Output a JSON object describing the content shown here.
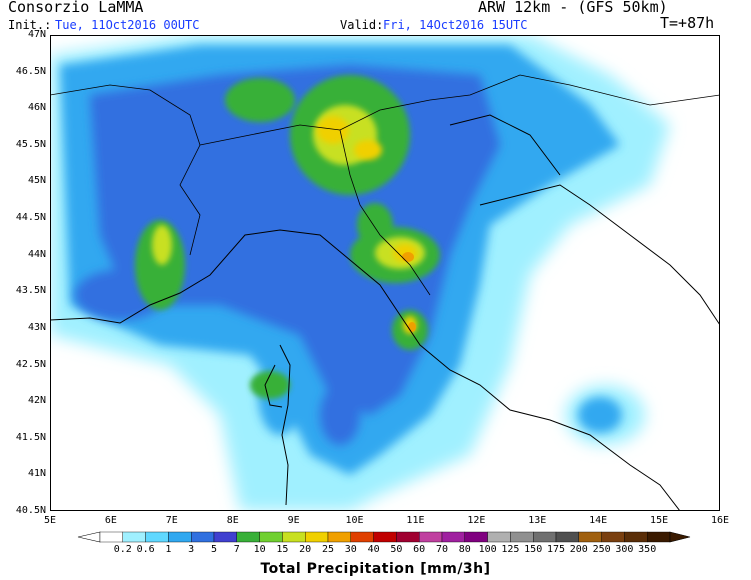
{
  "header": {
    "title": "Consorzio LaMMA",
    "model": "ARW 12km - (GFS 50km)",
    "init_label": "Init.:",
    "init_value": "Tue, 11Oct2016 00UTC",
    "valid_label": "Valid:",
    "valid_value": "Fri, 14Oct2016 15UTC",
    "forecast_step": "T=+87h"
  },
  "map": {
    "lat_labels": [
      "47N",
      "46.5N",
      "46N",
      "45.5N",
      "45N",
      "44.5N",
      "44N",
      "43.5N",
      "43N",
      "42.5N",
      "42N",
      "41.5N",
      "41N",
      "40.5N"
    ],
    "lon_labels": [
      "5E",
      "6E",
      "7E",
      "8E",
      "9E",
      "10E",
      "11E",
      "12E",
      "13E",
      "14E",
      "15E",
      "16E"
    ],
    "extent": {
      "lon_min": 5,
      "lon_max": 16,
      "lat_min": 40.5,
      "lat_max": 47
    }
  },
  "legend": {
    "title": "Total Precipitation [mm/3h]",
    "thresholds": [
      "0.2",
      "0.6",
      "1",
      "3",
      "5",
      "7",
      "10",
      "15",
      "20",
      "25",
      "30",
      "40",
      "50",
      "60",
      "70",
      "80",
      "100",
      "125",
      "150",
      "175",
      "200",
      "250",
      "300",
      "350"
    ],
    "colors": [
      "#ffffff",
      "#a0f0ff",
      "#60d8ff",
      "#30a8f0",
      "#3070e0",
      "#4040d0",
      "#38b038",
      "#70d030",
      "#c8e020",
      "#f0d000",
      "#f0a000",
      "#e04000",
      "#c00000",
      "#a00030",
      "#c040a0",
      "#a020a0",
      "#800080",
      "#b0b0b0",
      "#909090",
      "#707070",
      "#505050",
      "#a06010",
      "#7a4010",
      "#5a2e08",
      "#3a1a00"
    ]
  }
}
